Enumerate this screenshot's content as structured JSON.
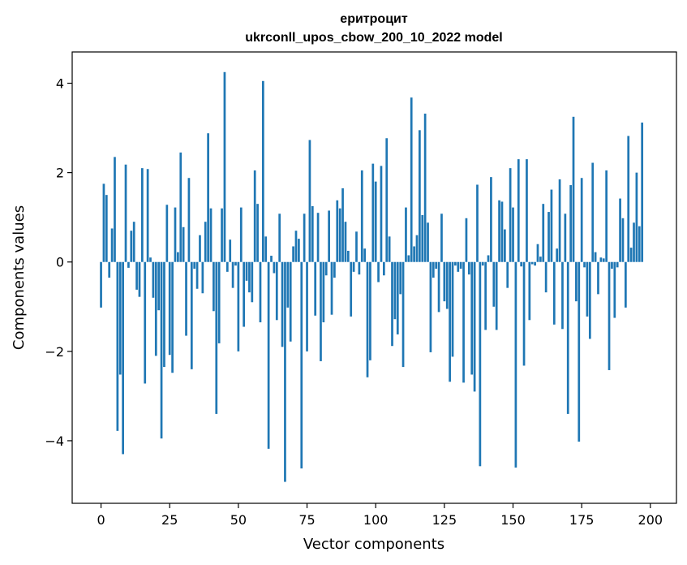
{
  "chart_data": {
    "type": "bar",
    "title_line1": "еритроцит",
    "title_line2": "ukrconll_upos_cbow_200_10_2022 model",
    "xlabel": "Vector components",
    "ylabel": "Components values",
    "xlim": [
      -10.5,
      209.5
    ],
    "ylim": [
      -5.4,
      4.7
    ],
    "xticks": [
      0,
      25,
      50,
      75,
      100,
      125,
      150,
      175,
      200
    ],
    "xtick_labels": [
      "0",
      "25",
      "50",
      "75",
      "100",
      "125",
      "150",
      "175",
      "200"
    ],
    "yticks": [
      -4,
      -2,
      0,
      2,
      4
    ],
    "ytick_labels": [
      "−4",
      "−2",
      "0",
      "2",
      "4"
    ],
    "bar_color": "#1f77b4",
    "values": [
      -1.02,
      1.75,
      1.5,
      -0.35,
      0.75,
      2.35,
      -3.78,
      -2.52,
      -4.3,
      2.18,
      -0.13,
      0.7,
      0.9,
      -0.62,
      -0.78,
      2.1,
      -2.72,
      2.08,
      0.1,
      -0.8,
      -2.1,
      -1.08,
      -3.95,
      -2.35,
      1.28,
      -2.08,
      -2.48,
      1.22,
      0.22,
      2.45,
      0.78,
      -1.65,
      1.88,
      -2.4,
      -0.15,
      -0.6,
      0.6,
      -0.7,
      0.9,
      2.88,
      1.2,
      -1.1,
      -3.4,
      -1.82,
      1.2,
      4.25,
      -0.22,
      0.5,
      -0.58,
      -0.08,
      -2.0,
      1.22,
      -1.45,
      -0.42,
      -0.68,
      -0.9,
      2.05,
      1.3,
      -1.35,
      4.05,
      0.57,
      -4.18,
      0.14,
      -0.25,
      -1.3,
      1.08,
      -1.9,
      -4.92,
      -1.02,
      -1.78,
      0.35,
      0.7,
      0.52,
      -4.62,
      1.08,
      -2.0,
      2.73,
      1.25,
      -1.2,
      1.1,
      -2.22,
      -1.35,
      -0.3,
      1.15,
      -1.18,
      -0.35,
      1.38,
      1.2,
      1.65,
      0.9,
      0.25,
      -1.22,
      -0.22,
      0.68,
      -0.28,
      2.05,
      0.3,
      -2.58,
      -2.2,
      2.2,
      1.8,
      -0.45,
      2.15,
      -0.3,
      2.77,
      0.57,
      -1.88,
      -1.28,
      -1.62,
      -0.72,
      -2.35,
      1.22,
      0.15,
      3.68,
      0.35,
      0.6,
      2.95,
      1.05,
      3.32,
      0.88,
      -2.02,
      -0.35,
      -0.15,
      -1.12,
      1.08,
      -0.88,
      -1.05,
      -2.68,
      -2.12,
      -0.08,
      -0.22,
      -0.15,
      -2.7,
      0.98,
      -0.28,
      -2.52,
      -2.9,
      1.73,
      -4.57,
      -0.08,
      -1.52,
      0.15,
      1.9,
      -1.0,
      -1.52,
      1.38,
      1.35,
      0.73,
      -0.58,
      2.1,
      1.22,
      -4.6,
      2.3,
      -0.1,
      -2.32,
      2.3,
      -1.3,
      -0.05,
      -0.08,
      0.4,
      0.12,
      1.3,
      -0.68,
      1.12,
      1.62,
      -1.4,
      0.3,
      1.85,
      -1.5,
      1.08,
      -3.4,
      1.72,
      3.25,
      -0.88,
      -4.02,
      1.88,
      -0.12,
      -1.22,
      -1.72,
      2.22,
      0.22,
      -0.72,
      0.1,
      0.08,
      2.05,
      -2.42,
      -0.15,
      -1.25,
      -0.12,
      1.42,
      0.98,
      -1.02,
      2.82,
      0.32,
      0.88,
      2.0,
      0.8,
      3.12
    ]
  }
}
